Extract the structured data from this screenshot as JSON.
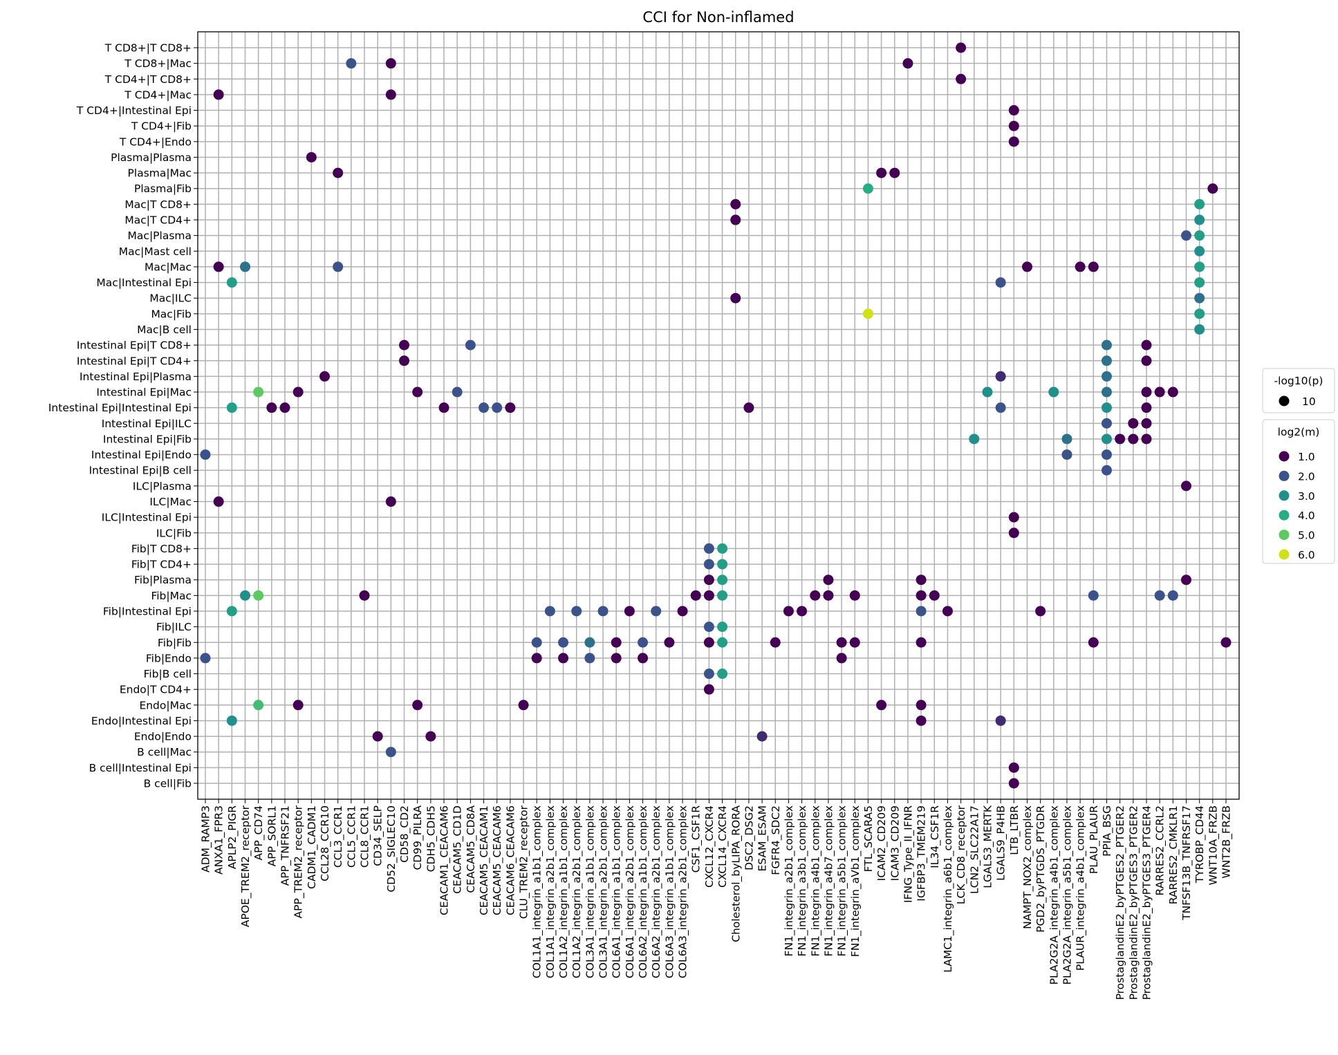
{
  "chart_data": {
    "type": "scatter",
    "title": "CCI for Non-inflamed",
    "xlabel": "",
    "ylabel": "",
    "grid": true,
    "x_categories": [
      "ADM_RAMP3",
      "ANXA1_FPR3",
      "APLP2_PIGR",
      "APOE_TREM2_receptor",
      "APP_CD74",
      "APP_SORL1",
      "APP_TNFRSF21",
      "APP_TREM2_receptor",
      "CADM1_CADM1",
      "CCL28_CCR10",
      "CCL3_CCR1",
      "CCL5_CCR1",
      "CCL8_CCR1",
      "CD34_SELP",
      "CD52_SIGLEC10",
      "CD58_CD2",
      "CD99_PILRA",
      "CDH5_CDH5",
      "CEACAM1_CEACAM6",
      "CEACAM5_CD1D",
      "CEACAM5_CD8A",
      "CEACAM5_CEACAM1",
      "CEACAM5_CEACAM6",
      "CEACAM6_CEACAM6",
      "CLU_TREM2_receptor",
      "COL1A1_integrin_a1b1_complex",
      "COL1A1_integrin_a2b1_complex",
      "COL1A2_integrin_a1b1_complex",
      "COL1A2_integrin_a2b1_complex",
      "COL3A1_integrin_a1b1_complex",
      "COL3A1_integrin_a2b1_complex",
      "COL6A1_integrin_a1b1_complex",
      "COL6A1_integrin_a2b1_complex",
      "COL6A2_integrin_a1b1_complex",
      "COL6A2_integrin_a2b1_complex",
      "COL6A3_integrin_a1b1_complex",
      "COL6A3_integrin_a2b1_complex",
      "CSF1_CSF1R",
      "CXCL12_CXCR4",
      "CXCL14_CXCR4",
      "Cholesterol_byLIPA_RORA",
      "DSC2_DSG2",
      "ESAM_ESAM",
      "FGFR4_SDC2",
      "FN1_integrin_a2b1_complex",
      "FN1_integrin_a3b1_complex",
      "FN1_integrin_a4b1_complex",
      "FN1_integrin_a4b7_complex",
      "FN1_integrin_a5b1_complex",
      "FN1_integrin_aVb1_complex",
      "FTL_SCARA5",
      "ICAM2_CD209",
      "ICAM3_CD209",
      "IFNG_Type_II_IFNR",
      "IGFBP3_TMEM219",
      "IL34_CSF1R",
      "LAMC1_integrin_a6b1_complex",
      "LCK_CD8_receptor",
      "LCN2_SLC22A17",
      "LGALS3_MERTK",
      "LGALS9_P4HB",
      "LTB_LTBR",
      "NAMPT_NOX2_complex",
      "PGD2_byPTGDS_PTGDR",
      "PLA2G2A_integrin_a4b1_complex",
      "PLA2G2A_integrin_a5b1_complex",
      "PLAUR_integrin_a4b1_complex",
      "PLAU_PLAUR",
      "PPIA_BSG",
      "ProstaglandinE2_byPTGES2_PTGER2",
      "ProstaglandinE2_byPTGES3_PTGER2",
      "ProstaglandinE2_byPTGES3_PTGER4",
      "RARRES2_CCRL2",
      "RARRES2_CMKLR1",
      "TNFSF13B_TNFRSF17",
      "TYROBP_CD44",
      "WNT10A_FRZB",
      "WNT2B_FRZB"
    ],
    "y_categories": [
      "T CD8+|T CD8+",
      "T CD8+|Mac",
      "T CD4+|T CD8+",
      "T CD4+|Mac",
      "T CD4+|Intestinal Epi",
      "T CD4+|Fib",
      "T CD4+|Endo",
      "Plasma|Plasma",
      "Plasma|Mac",
      "Plasma|Fib",
      "Mac|T CD8+",
      "Mac|T CD4+",
      "Mac|Plasma",
      "Mac|Mast cell",
      "Mac|Mac",
      "Mac|Intestinal Epi",
      "Mac|ILC",
      "Mac|Fib",
      "Mac|B cell",
      "Intestinal Epi|T CD8+",
      "Intestinal Epi|T CD4+",
      "Intestinal Epi|Plasma",
      "Intestinal Epi|Mac",
      "Intestinal Epi|Intestinal Epi",
      "Intestinal Epi|ILC",
      "Intestinal Epi|Fib",
      "Intestinal Epi|Endo",
      "Intestinal Epi|B cell",
      "ILC|Plasma",
      "ILC|Mac",
      "ILC|Intestinal Epi",
      "ILC|Fib",
      "Fib|T CD8+",
      "Fib|T CD4+",
      "Fib|Plasma",
      "Fib|Mac",
      "Fib|Intestinal Epi",
      "Fib|ILC",
      "Fib|Fib",
      "Fib|Endo",
      "Fib|B cell",
      "Endo|T CD4+",
      "Endo|Mac",
      "Endo|Intestinal Epi",
      "Endo|Endo",
      "B cell|Mac",
      "B cell|Intestinal Epi",
      "B cell|Fib"
    ],
    "size_legend": {
      "title": "-log10(p)",
      "entries": [
        {
          "label": "10",
          "value": 10
        }
      ]
    },
    "color_legend": {
      "title": "log2(m)",
      "entries": [
        {
          "label": "1.0",
          "value": 1.0,
          "color": "#440154"
        },
        {
          "label": "2.0",
          "value": 2.0,
          "color": "#3b528b"
        },
        {
          "label": "3.0",
          "value": 3.0,
          "color": "#21908d"
        },
        {
          "label": "4.0",
          "value": 4.0,
          "color": "#27ad81"
        },
        {
          "label": "5.0",
          "value": 5.0,
          "color": "#5ec962"
        },
        {
          "label": "6.0",
          "value": 6.0,
          "color": "#d0e11c"
        }
      ]
    },
    "legend_placement": "right",
    "points": [
      [
        "LCK_CD8_receptor",
        "T CD8+|T CD8+",
        1.0
      ],
      [
        "CCL5_CCR1",
        "T CD8+|Mac",
        2.0
      ],
      [
        "CD52_SIGLEC10",
        "T CD8+|Mac",
        1.0
      ],
      [
        "IFNG_Type_II_IFNR",
        "T CD8+|Mac",
        1.0
      ],
      [
        "LCK_CD8_receptor",
        "T CD4+|T CD8+",
        1.0
      ],
      [
        "ANXA1_FPR3",
        "T CD4+|Mac",
        1.0
      ],
      [
        "CD52_SIGLEC10",
        "T CD4+|Mac",
        1.0
      ],
      [
        "LTB_LTBR",
        "T CD4+|Intestinal Epi",
        1.0
      ],
      [
        "LTB_LTBR",
        "T CD4+|Fib",
        1.0
      ],
      [
        "LTB_LTBR",
        "T CD4+|Endo",
        1.0
      ],
      [
        "CADM1_CADM1",
        "Plasma|Plasma",
        1.0
      ],
      [
        "CCL3_CCR1",
        "Plasma|Mac",
        1.0
      ],
      [
        "ICAM2_CD209",
        "Plasma|Mac",
        1.0
      ],
      [
        "ICAM3_CD209",
        "Plasma|Mac",
        1.0
      ],
      [
        "FTL_SCARA5",
        "Plasma|Fib",
        4.0
      ],
      [
        "WNT10A_FRZB",
        "Plasma|Fib",
        1.0
      ],
      [
        "Cholesterol_byLIPA_RORA",
        "Mac|T CD8+",
        1.0
      ],
      [
        "TYROBP_CD44",
        "Mac|T CD8+",
        3.5
      ],
      [
        "Cholesterol_byLIPA_RORA",
        "Mac|T CD4+",
        1.0
      ],
      [
        "TYROBP_CD44",
        "Mac|T CD4+",
        3.0
      ],
      [
        "TNFSF13B_TNFRSF17",
        "Mac|Plasma",
        2.0
      ],
      [
        "TYROBP_CD44",
        "Mac|Plasma",
        3.5
      ],
      [
        "TYROBP_CD44",
        "Mac|Mast cell",
        3.0
      ],
      [
        "ANXA1_FPR3",
        "Mac|Mac",
        1.0
      ],
      [
        "APOE_TREM2_receptor",
        "Mac|Mac",
        2.5
      ],
      [
        "CCL3_CCR1",
        "Mac|Mac",
        2.0
      ],
      [
        "NAMPT_NOX2_complex",
        "Mac|Mac",
        1.0
      ],
      [
        "PLAUR_integrin_a4b1_complex",
        "Mac|Mac",
        1.0
      ],
      [
        "PLAU_PLAUR",
        "Mac|Mac",
        1.0
      ],
      [
        "TYROBP_CD44",
        "Mac|Mac",
        3.5
      ],
      [
        "APLP2_PIGR",
        "Mac|Intestinal Epi",
        3.5
      ],
      [
        "LGALS9_P4HB",
        "Mac|Intestinal Epi",
        2.0
      ],
      [
        "TYROBP_CD44",
        "Mac|Intestinal Epi",
        3.5
      ],
      [
        "Cholesterol_byLIPA_RORA",
        "Mac|ILC",
        1.0
      ],
      [
        "TYROBP_CD44",
        "Mac|ILC",
        2.5
      ],
      [
        "FTL_SCARA5",
        "Mac|Fib",
        6.0
      ],
      [
        "TYROBP_CD44",
        "Mac|Fib",
        3.5
      ],
      [
        "TYROBP_CD44",
        "Mac|B cell",
        3.0
      ],
      [
        "CD58_CD2",
        "Intestinal Epi|T CD8+",
        1.0
      ],
      [
        "CEACAM5_CD8A",
        "Intestinal Epi|T CD8+",
        2.0
      ],
      [
        "PPIA_BSG",
        "Intestinal Epi|T CD8+",
        2.5
      ],
      [
        "ProstaglandinE2_byPTGES3_PTGER4",
        "Intestinal Epi|T CD8+",
        1.0
      ],
      [
        "CD58_CD2",
        "Intestinal Epi|T CD4+",
        1.0
      ],
      [
        "PPIA_BSG",
        "Intestinal Epi|T CD4+",
        2.5
      ],
      [
        "ProstaglandinE2_byPTGES3_PTGER4",
        "Intestinal Epi|T CD4+",
        1.0
      ],
      [
        "CCL28_CCR10",
        "Intestinal Epi|Plasma",
        1.0
      ],
      [
        "LGALS9_P4HB",
        "Intestinal Epi|Plasma",
        1.5
      ],
      [
        "PPIA_BSG",
        "Intestinal Epi|Plasma",
        2.5
      ],
      [
        "APP_CD74",
        "Intestinal Epi|Mac",
        5.0
      ],
      [
        "APP_TREM2_receptor",
        "Intestinal Epi|Mac",
        1.0
      ],
      [
        "CD99_PILRA",
        "Intestinal Epi|Mac",
        1.0
      ],
      [
        "CEACAM5_CD1D",
        "Intestinal Epi|Mac",
        2.0
      ],
      [
        "LGALS3_MERTK",
        "Intestinal Epi|Mac",
        3.0
      ],
      [
        "PLA2G2A_integrin_a4b1_complex",
        "Intestinal Epi|Mac",
        3.0
      ],
      [
        "PPIA_BSG",
        "Intestinal Epi|Mac",
        2.5
      ],
      [
        "ProstaglandinE2_byPTGES3_PTGER4",
        "Intestinal Epi|Mac",
        1.0
      ],
      [
        "RARRES2_CCRL2",
        "Intestinal Epi|Mac",
        1.0
      ],
      [
        "RARRES2_CMKLR1",
        "Intestinal Epi|Mac",
        1.0
      ],
      [
        "APLP2_PIGR",
        "Intestinal Epi|Intestinal Epi",
        3.5
      ],
      [
        "APP_SORL1",
        "Intestinal Epi|Intestinal Epi",
        1.0
      ],
      [
        "APP_TNFRSF21",
        "Intestinal Epi|Intestinal Epi",
        1.0
      ],
      [
        "CEACAM1_CEACAM6",
        "Intestinal Epi|Intestinal Epi",
        1.0
      ],
      [
        "CEACAM5_CEACAM1",
        "Intestinal Epi|Intestinal Epi",
        2.0
      ],
      [
        "CEACAM5_CEACAM6",
        "Intestinal Epi|Intestinal Epi",
        2.0
      ],
      [
        "CEACAM6_CEACAM6",
        "Intestinal Epi|Intestinal Epi",
        1.0
      ],
      [
        "DSC2_DSG2",
        "Intestinal Epi|Intestinal Epi",
        1.0
      ],
      [
        "LGALS9_P4HB",
        "Intestinal Epi|Intestinal Epi",
        2.0
      ],
      [
        "PPIA_BSG",
        "Intestinal Epi|Intestinal Epi",
        3.0
      ],
      [
        "ProstaglandinE2_byPTGES3_PTGER4",
        "Intestinal Epi|Intestinal Epi",
        1.0
      ],
      [
        "PPIA_BSG",
        "Intestinal Epi|ILC",
        2.0
      ],
      [
        "ProstaglandinE2_byPTGES3_PTGER2",
        "Intestinal Epi|ILC",
        1.0
      ],
      [
        "ProstaglandinE2_byPTGES3_PTGER4",
        "Intestinal Epi|ILC",
        1.0
      ],
      [
        "LCN2_SLC22A17",
        "Intestinal Epi|Fib",
        3.0
      ],
      [
        "PLA2G2A_integrin_a5b1_complex",
        "Intestinal Epi|Fib",
        2.5
      ],
      [
        "PPIA_BSG",
        "Intestinal Epi|Fib",
        3.0
      ],
      [
        "ProstaglandinE2_byPTGES2_PTGER2",
        "Intestinal Epi|Fib",
        1.0
      ],
      [
        "ProstaglandinE2_byPTGES3_PTGER2",
        "Intestinal Epi|Fib",
        1.0
      ],
      [
        "ProstaglandinE2_byPTGES3_PTGER4",
        "Intestinal Epi|Fib",
        1.0
      ],
      [
        "ADM_RAMP3",
        "Intestinal Epi|Endo",
        2.0
      ],
      [
        "PLA2G2A_integrin_a5b1_complex",
        "Intestinal Epi|Endo",
        2.0
      ],
      [
        "PPIA_BSG",
        "Intestinal Epi|Endo",
        2.0
      ],
      [
        "PPIA_BSG",
        "Intestinal Epi|B cell",
        2.0
      ],
      [
        "TNFSF13B_TNFRSF17",
        "ILC|Plasma",
        1.0
      ],
      [
        "ANXA1_FPR3",
        "ILC|Mac",
        1.0
      ],
      [
        "CD52_SIGLEC10",
        "ILC|Mac",
        1.0
      ],
      [
        "LTB_LTBR",
        "ILC|Intestinal Epi",
        1.0
      ],
      [
        "LTB_LTBR",
        "ILC|Fib",
        1.0
      ],
      [
        "CXCL12_CXCR4",
        "Fib|T CD8+",
        2.0
      ],
      [
        "CXCL14_CXCR4",
        "Fib|T CD8+",
        3.5
      ],
      [
        "CXCL12_CXCR4",
        "Fib|T CD4+",
        2.0
      ],
      [
        "CXCL14_CXCR4",
        "Fib|T CD4+",
        3.5
      ],
      [
        "CXCL12_CXCR4",
        "Fib|Plasma",
        1.0
      ],
      [
        "CXCL14_CXCR4",
        "Fib|Plasma",
        3.5
      ],
      [
        "FN1_integrin_a4b7_complex",
        "Fib|Plasma",
        1.0
      ],
      [
        "IGFBP3_TMEM219",
        "Fib|Plasma",
        1.0
      ],
      [
        "TNFSF13B_TNFRSF17",
        "Fib|Plasma",
        1.0
      ],
      [
        "APOE_TREM2_receptor",
        "Fib|Mac",
        3.0
      ],
      [
        "APP_CD74",
        "Fib|Mac",
        5.0
      ],
      [
        "CCL8_CCR1",
        "Fib|Mac",
        1.0
      ],
      [
        "CSF1_CSF1R",
        "Fib|Mac",
        1.0
      ],
      [
        "CXCL12_CXCR4",
        "Fib|Mac",
        1.0
      ],
      [
        "CXCL14_CXCR4",
        "Fib|Mac",
        3.5
      ],
      [
        "FN1_integrin_a4b1_complex",
        "Fib|Mac",
        1.0
      ],
      [
        "FN1_integrin_a4b7_complex",
        "Fib|Mac",
        1.0
      ],
      [
        "FN1_integrin_aVb1_complex",
        "Fib|Mac",
        1.0
      ],
      [
        "IGFBP3_TMEM219",
        "Fib|Mac",
        1.0
      ],
      [
        "IL34_CSF1R",
        "Fib|Mac",
        1.0
      ],
      [
        "PLAU_PLAUR",
        "Fib|Mac",
        2.0
      ],
      [
        "RARRES2_CCRL2",
        "Fib|Mac",
        2.0
      ],
      [
        "RARRES2_CMKLR1",
        "Fib|Mac",
        2.0
      ],
      [
        "APLP2_PIGR",
        "Fib|Intestinal Epi",
        3.5
      ],
      [
        "COL1A1_integrin_a2b1_complex",
        "Fib|Intestinal Epi",
        2.0
      ],
      [
        "COL1A2_integrin_a2b1_complex",
        "Fib|Intestinal Epi",
        2.0
      ],
      [
        "COL3A1_integrin_a2b1_complex",
        "Fib|Intestinal Epi",
        2.0
      ],
      [
        "COL6A1_integrin_a2b1_complex",
        "Fib|Intestinal Epi",
        1.0
      ],
      [
        "COL6A2_integrin_a2b1_complex",
        "Fib|Intestinal Epi",
        2.0
      ],
      [
        "COL6A3_integrin_a2b1_complex",
        "Fib|Intestinal Epi",
        1.0
      ],
      [
        "FN1_integrin_a2b1_complex",
        "Fib|Intestinal Epi",
        1.0
      ],
      [
        "FN1_integrin_a3b1_complex",
        "Fib|Intestinal Epi",
        1.0
      ],
      [
        "IGFBP3_TMEM219",
        "Fib|Intestinal Epi",
        2.0
      ],
      [
        "LAMC1_integrin_a6b1_complex",
        "Fib|Intestinal Epi",
        1.0
      ],
      [
        "PGD2_byPTGDS_PTGDR",
        "Fib|Intestinal Epi",
        1.0
      ],
      [
        "CXCL12_CXCR4",
        "Fib|ILC",
        2.0
      ],
      [
        "CXCL14_CXCR4",
        "Fib|ILC",
        3.5
      ],
      [
        "COL1A1_integrin_a1b1_complex",
        "Fib|Fib",
        2.0
      ],
      [
        "COL1A2_integrin_a1b1_complex",
        "Fib|Fib",
        2.0
      ],
      [
        "COL3A1_integrin_a1b1_complex",
        "Fib|Fib",
        2.5
      ],
      [
        "COL6A1_integrin_a1b1_complex",
        "Fib|Fib",
        1.0
      ],
      [
        "COL6A2_integrin_a1b1_complex",
        "Fib|Fib",
        2.0
      ],
      [
        "COL6A3_integrin_a1b1_complex",
        "Fib|Fib",
        1.0
      ],
      [
        "CXCL12_CXCR4",
        "Fib|Fib",
        1.0
      ],
      [
        "CXCL14_CXCR4",
        "Fib|Fib",
        3.5
      ],
      [
        "FGFR4_SDC2",
        "Fib|Fib",
        1.0
      ],
      [
        "FN1_integrin_a5b1_complex",
        "Fib|Fib",
        1.0
      ],
      [
        "FN1_integrin_aVb1_complex",
        "Fib|Fib",
        1.0
      ],
      [
        "IGFBP3_TMEM219",
        "Fib|Fib",
        1.0
      ],
      [
        "PLAU_PLAUR",
        "Fib|Fib",
        1.0
      ],
      [
        "WNT2B_FRZB",
        "Fib|Fib",
        1.0
      ],
      [
        "ADM_RAMP3",
        "Fib|Endo",
        2.0
      ],
      [
        "COL1A1_integrin_a1b1_complex",
        "Fib|Endo",
        1.0
      ],
      [
        "COL1A2_integrin_a1b1_complex",
        "Fib|Endo",
        1.0
      ],
      [
        "COL3A1_integrin_a1b1_complex",
        "Fib|Endo",
        2.0
      ],
      [
        "COL6A1_integrin_a1b1_complex",
        "Fib|Endo",
        1.0
      ],
      [
        "COL6A2_integrin_a1b1_complex",
        "Fib|Endo",
        1.0
      ],
      [
        "FN1_integrin_a5b1_complex",
        "Fib|Endo",
        1.0
      ],
      [
        "CXCL12_CXCR4",
        "Fib|B cell",
        2.0
      ],
      [
        "CXCL14_CXCR4",
        "Fib|B cell",
        3.5
      ],
      [
        "CXCL12_CXCR4",
        "Endo|T CD4+",
        1.0
      ],
      [
        "APP_CD74",
        "Endo|Mac",
        4.5
      ],
      [
        "APP_TREM2_receptor",
        "Endo|Mac",
        1.0
      ],
      [
        "CD99_PILRA",
        "Endo|Mac",
        1.0
      ],
      [
        "CLU_TREM2_receptor",
        "Endo|Mac",
        1.0
      ],
      [
        "ICAM2_CD209",
        "Endo|Mac",
        1.0
      ],
      [
        "IGFBP3_TMEM219",
        "Endo|Mac",
        1.0
      ],
      [
        "APLP2_PIGR",
        "Endo|Intestinal Epi",
        3.0
      ],
      [
        "IGFBP3_TMEM219",
        "Endo|Intestinal Epi",
        1.0
      ],
      [
        "LGALS9_P4HB",
        "Endo|Intestinal Epi",
        1.5
      ],
      [
        "CD34_SELP",
        "Endo|Endo",
        1.0
      ],
      [
        "CDH5_CDH5",
        "Endo|Endo",
        1.0
      ],
      [
        "ESAM_ESAM",
        "Endo|Endo",
        1.5
      ],
      [
        "CD52_SIGLEC10",
        "B cell|Mac",
        2.0
      ],
      [
        "LTB_LTBR",
        "B cell|Intestinal Epi",
        1.0
      ],
      [
        "LTB_LTBR",
        "B cell|Fib",
        1.0
      ]
    ]
  }
}
